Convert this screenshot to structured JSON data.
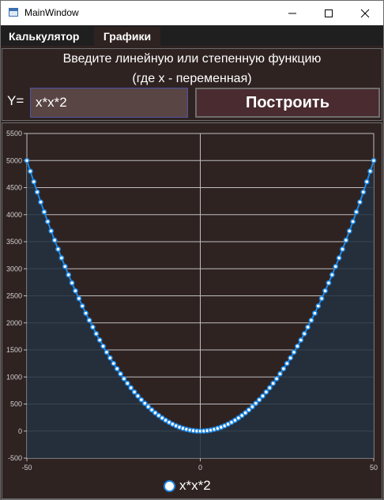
{
  "window": {
    "title": "MainWindow"
  },
  "menu": {
    "tabs": [
      {
        "label": "Калькулятор"
      },
      {
        "label": "Графики"
      }
    ]
  },
  "header": {
    "prompt_line1": "Введите линейную или степенную функцию",
    "prompt_line2": "(где x - переменная)",
    "y_label": "Y=",
    "function_value": "x*x*2",
    "build_label": "Построить"
  },
  "colors": {
    "series": "#1e88e5",
    "background": "#2f2322",
    "area_fill": "#233040"
  },
  "chart_data": {
    "type": "line",
    "title": "",
    "xlabel": "",
    "ylabel": "",
    "xlim": [
      -50,
      50
    ],
    "ylim": [
      -500,
      5500
    ],
    "x_ticks": [
      "-50",
      "0",
      "50"
    ],
    "y_ticks": [
      "-500",
      "0",
      "500",
      "1000",
      "1500",
      "2000",
      "2500",
      "3000",
      "3500",
      "4000",
      "4500",
      "5000",
      "5500"
    ],
    "grid": true,
    "legend": "bottom",
    "series": [
      {
        "name": "x*x*2",
        "color": "#1e88e5",
        "x": [
          -50,
          -49,
          -48,
          -47,
          -46,
          -45,
          -44,
          -43,
          -42,
          -41,
          -40,
          -39,
          -38,
          -37,
          -36,
          -35,
          -34,
          -33,
          -32,
          -31,
          -30,
          -29,
          -28,
          -27,
          -26,
          -25,
          -24,
          -23,
          -22,
          -21,
          -20,
          -19,
          -18,
          -17,
          -16,
          -15,
          -14,
          -13,
          -12,
          -11,
          -10,
          -9,
          -8,
          -7,
          -6,
          -5,
          -4,
          -3,
          -2,
          -1,
          0,
          1,
          2,
          3,
          4,
          5,
          6,
          7,
          8,
          9,
          10,
          11,
          12,
          13,
          14,
          15,
          16,
          17,
          18,
          19,
          20,
          21,
          22,
          23,
          24,
          25,
          26,
          27,
          28,
          29,
          30,
          31,
          32,
          33,
          34,
          35,
          36,
          37,
          38,
          39,
          40,
          41,
          42,
          43,
          44,
          45,
          46,
          47,
          48,
          49,
          50
        ],
        "y": [
          5000,
          4802,
          4608,
          4418,
          4232,
          4050,
          3872,
          3698,
          3528,
          3362,
          3200,
          3042,
          2888,
          2738,
          2592,
          2450,
          2312,
          2178,
          2048,
          1922,
          1800,
          1682,
          1568,
          1458,
          1352,
          1250,
          1152,
          1058,
          968,
          882,
          800,
          722,
          648,
          578,
          512,
          450,
          392,
          338,
          288,
          242,
          200,
          162,
          128,
          98,
          72,
          50,
          32,
          18,
          8,
          2,
          0,
          2,
          8,
          18,
          32,
          50,
          72,
          98,
          128,
          162,
          200,
          242,
          288,
          338,
          392,
          450,
          512,
          578,
          648,
          722,
          800,
          882,
          968,
          1058,
          1152,
          1250,
          1352,
          1458,
          1568,
          1682,
          1800,
          1922,
          2048,
          2178,
          2312,
          2450,
          2592,
          2738,
          2888,
          3042,
          3200,
          3362,
          3528,
          3698,
          3872,
          4050,
          4232,
          4418,
          4608,
          4802,
          5000
        ]
      }
    ]
  }
}
